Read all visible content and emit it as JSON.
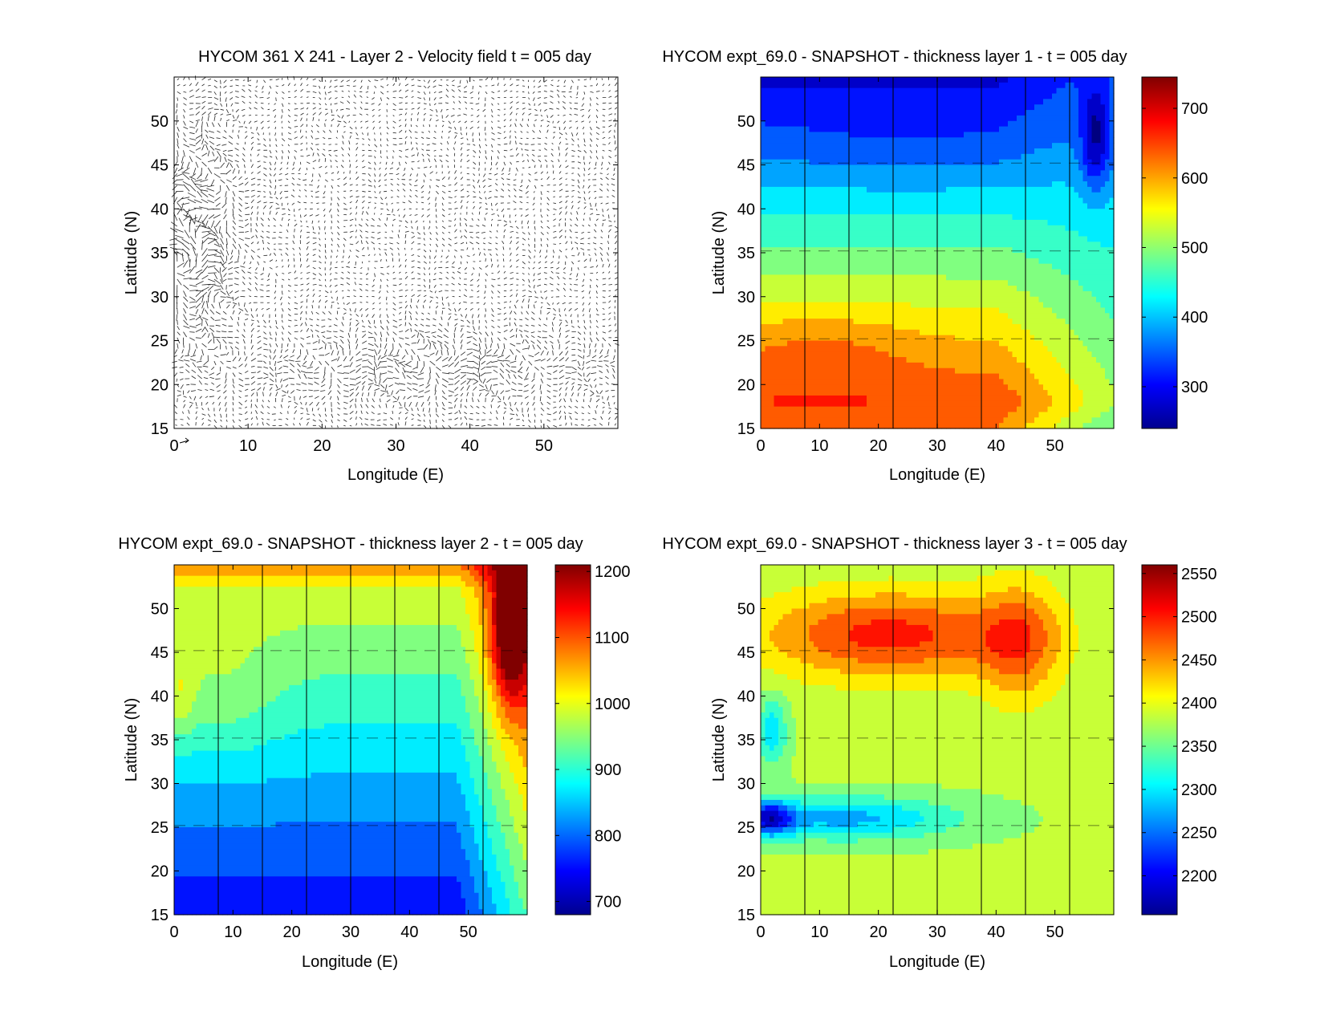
{
  "chart_data": [
    {
      "id": "velocity",
      "type": "quiver",
      "title": "HYCOM 361 X 241 - Layer 2 - Velocity field  t = 005 day",
      "xlabel": "Longitude (E)",
      "ylabel": "Latitude (N)",
      "xlim": [
        0,
        60
      ],
      "ylim": [
        15,
        55
      ],
      "xticks": [
        "0",
        "10",
        "20",
        "30",
        "40",
        "50"
      ],
      "yticks": [
        "15",
        "20",
        "25",
        "30",
        "35",
        "40",
        "45",
        "50"
      ],
      "reference_arrow": "present at lower-left corner",
      "field_description": "dense velocity arrows, strongest near western boundary (0-10E, 25-48N) and along 18-26N band"
    },
    {
      "id": "layer1",
      "type": "contourf",
      "title": "HYCOM expt_69.0 - SNAPSHOT - thickness layer 1 - t = 005 day",
      "xlabel": "Longitude (E)",
      "ylabel": "Latitude (N)",
      "xlim": [
        0,
        60
      ],
      "ylim": [
        15,
        55
      ],
      "xticks": [
        "0",
        "10",
        "20",
        "30",
        "40",
        "50"
      ],
      "yticks": [
        "15",
        "20",
        "25",
        "30",
        "35",
        "40",
        "45",
        "50"
      ],
      "colorbar": {
        "range": [
          240,
          745
        ],
        "ticks": [
          "300",
          "400",
          "500",
          "600",
          "700"
        ]
      },
      "field_description": "thickness decreases northward: ~700 near 20-27N western basin, ~280 near 45-50N; minimum near eastern boundary 50-55N"
    },
    {
      "id": "layer2",
      "type": "contourf",
      "title": "HYCOM expt_69.0 - SNAPSHOT - thickness layer 2 - t = 005 day",
      "xlabel": "Longitude (E)",
      "ylabel": "Latitude (N)",
      "xlim": [
        0,
        60
      ],
      "ylim": [
        15,
        55
      ],
      "xticks": [
        "0",
        "10",
        "20",
        "30",
        "40",
        "50"
      ],
      "yticks": [
        "15",
        "20",
        "25",
        "30",
        "35",
        "40",
        "45",
        "50"
      ],
      "colorbar": {
        "range": [
          680,
          1210
        ],
        "ticks": [
          "700",
          "800",
          "900",
          "1000",
          "1100",
          "1200"
        ]
      },
      "field_description": "~1000 in north, ~750 near 20-25N; maximum ~1200 along eastern boundary 45-55N"
    },
    {
      "id": "layer3",
      "type": "contourf",
      "title": "HYCOM expt_69.0 - SNAPSHOT - thickness layer 3 - t = 005 day",
      "xlabel": "Longitude (E)",
      "ylabel": "Latitude (N)",
      "xlim": [
        0,
        60
      ],
      "ylim": [
        15,
        55
      ],
      "xticks": [
        "0",
        "10",
        "20",
        "30",
        "40",
        "50"
      ],
      "yticks": [
        "15",
        "20",
        "25",
        "30",
        "35",
        "40",
        "45",
        "50"
      ],
      "colorbar": {
        "range": [
          2155,
          2560
        ],
        "ticks": [
          "2200",
          "2250",
          "2300",
          "2350",
          "2400",
          "2450",
          "2500",
          "2550"
        ]
      },
      "field_description": "maximum ~2550 near 45E 45N, ~2500 band 42-50N; minimum ~2200 near 0-5E 24-26N; ~2370 elsewhere"
    }
  ]
}
